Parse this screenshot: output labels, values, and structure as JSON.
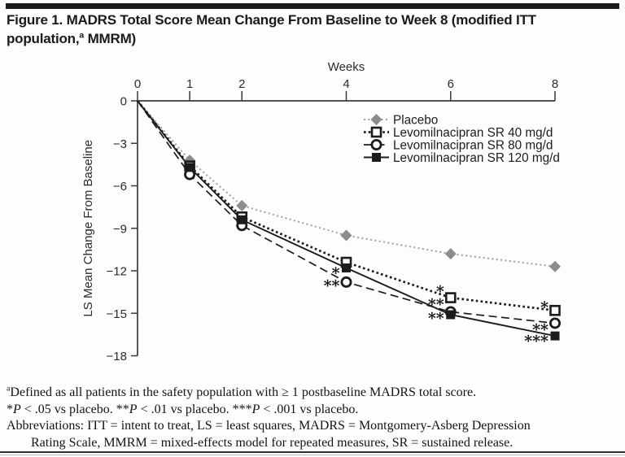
{
  "page": {
    "background": "#fdfdfc",
    "ink_color": "#1c1c1c"
  },
  "title": {
    "segments": [
      {
        "text": "Figure 1. MADRS Total Score Mean Change From Baseline to Week 8 (modified ITT population,"
      },
      {
        "text": "a",
        "style": "sup"
      },
      {
        "text": " MMRM)"
      }
    ]
  },
  "chart_data": {
    "type": "line",
    "xlabel": "Weeks",
    "ylabel": "LS Mean Change From Baseline",
    "x": [
      0,
      1,
      2,
      4,
      6,
      8
    ],
    "xlim": [
      0,
      8
    ],
    "ylim": [
      -18,
      0
    ],
    "xticks": [
      0,
      1,
      2,
      4,
      6,
      8
    ],
    "yticks": [
      0,
      -3,
      -6,
      -9,
      -12,
      -15,
      -18
    ],
    "grid": false,
    "legend_position": "inside-upper-right",
    "series": [
      {
        "name": "Placebo",
        "values": [
          0,
          -4.2,
          -7.4,
          -9.5,
          -10.8,
          -11.7
        ],
        "marker": "diamond-filled",
        "line_style": "dotted",
        "color": "#8c8c8c",
        "line_color": "#a3a3a3"
      },
      {
        "name": "Levomilnacipran SR 40 mg/d",
        "values": [
          0,
          -4.6,
          -8.2,
          -11.4,
          -13.9,
          -14.8
        ],
        "marker": "square-open",
        "line_style": "dotted-bold",
        "color": "#1c1c1c",
        "line_color": "#1c1c1c"
      },
      {
        "name": "Levomilnacipran SR 80 mg/d",
        "values": [
          0,
          -5.2,
          -8.8,
          -12.8,
          -14.9,
          -15.7
        ],
        "marker": "circle-open",
        "line_style": "dashed",
        "color": "#1c1c1c",
        "line_color": "#1c1c1c"
      },
      {
        "name": "Levomilnacipran SR 120 mg/d",
        "values": [
          0,
          -4.7,
          -8.4,
          -11.8,
          -15.1,
          -16.6
        ],
        "marker": "square-filled",
        "line_style": "solid",
        "color": "#1c1c1c",
        "line_color": "#1c1c1c"
      }
    ],
    "annotations": [
      {
        "text": "*",
        "week": 4,
        "y": -12.0,
        "series": "Levomilnacipran SR 120 mg/d"
      },
      {
        "text": "**",
        "week": 4,
        "y": -12.9,
        "series": "Levomilnacipran SR 80 mg/d"
      },
      {
        "text": "*",
        "week": 6,
        "y": -13.3,
        "series": "Levomilnacipran SR 40 mg/d"
      },
      {
        "text": "**",
        "week": 6,
        "y": -14.2,
        "series": "Levomilnacipran SR 80 mg/d"
      },
      {
        "text": "**",
        "week": 6,
        "y": -15.2,
        "series": "Levomilnacipran SR 120 mg/d"
      },
      {
        "text": "*",
        "week": 8,
        "y": -14.4,
        "series": "Levomilnacipran SR 40 mg/d"
      },
      {
        "text": "**",
        "week": 8,
        "y": -16.0,
        "series": "Levomilnacipran SR 80 mg/d"
      },
      {
        "text": "***",
        "week": 8,
        "y": -16.8,
        "series": "Levomilnacipran SR 120 mg/d"
      }
    ]
  },
  "footnotes": {
    "line1": [
      {
        "text": "a",
        "style": "sup"
      },
      {
        "text": "Defined as all patients in the safety population with ≥ 1 postbaseline MADRS total score."
      }
    ],
    "line2": [
      {
        "text": "*"
      },
      {
        "text": "P",
        "style": "italic"
      },
      {
        "text": " < .05 vs placebo.  **"
      },
      {
        "text": "P",
        "style": "italic"
      },
      {
        "text": " < .01 vs placebo.  ***"
      },
      {
        "text": "P",
        "style": "italic"
      },
      {
        "text": " < .001 vs placebo."
      }
    ],
    "line3": [
      {
        "text": "Abbreviations: ITT = intent to treat, LS = least squares, MADRS = Montgomery-Asberg Depression"
      }
    ],
    "line4": [
      {
        "text": "Rating Scale, MMRM = mixed-effects model for repeated measures, SR = sustained release."
      }
    ]
  }
}
